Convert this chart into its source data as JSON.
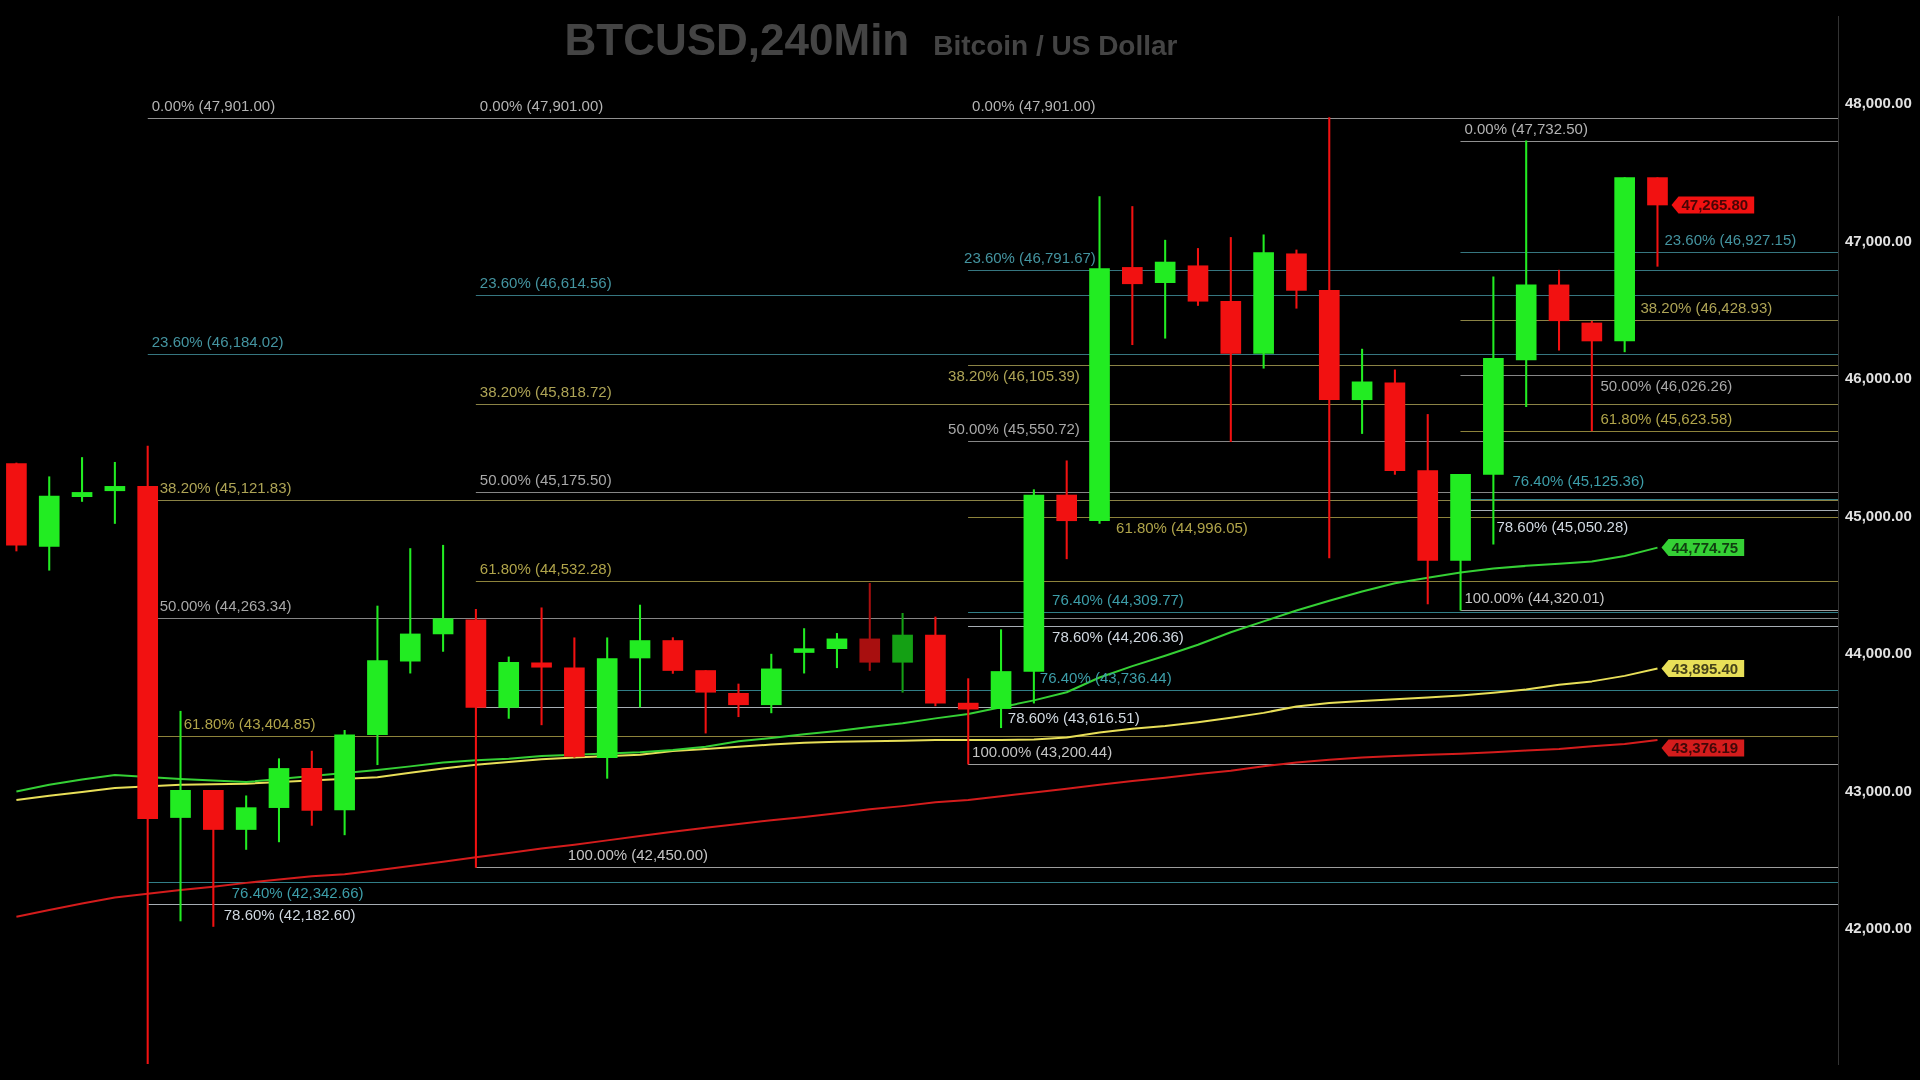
{
  "chart_data": {
    "type": "candlestick",
    "title": "BTCUSD,240Min",
    "subtitle": "Bitcoin / US Dollar",
    "categories": [
      null,
      null,
      null,
      null,
      null,
      null,
      null,
      null,
      null,
      null,
      null,
      null,
      null,
      null,
      null,
      null,
      null,
      null,
      null,
      null,
      null,
      null,
      null,
      null,
      null,
      null,
      null,
      null,
      null,
      null,
      null,
      null,
      null,
      null,
      null,
      null,
      null,
      null,
      null,
      null,
      null,
      null,
      null,
      null,
      null,
      null,
      null,
      null,
      null,
      null,
      null,
      null,
      null,
      null,
      null,
      null
    ],
    "ohlc": [
      [
        45386,
        45390,
        44750,
        44792
      ],
      [
        44784,
        45290,
        44610,
        45149
      ],
      [
        45145,
        45430,
        45110,
        45176
      ],
      [
        45188,
        45395,
        44950,
        45220
      ],
      [
        45220,
        45513,
        41020,
        42804
      ],
      [
        42812,
        43585,
        42060,
        43010
      ],
      [
        43010,
        43010,
        42020,
        42725
      ],
      [
        42725,
        42970,
        42580,
        42884
      ],
      [
        42884,
        43240,
        42635,
        43169
      ],
      [
        43169,
        43295,
        42755,
        42864
      ],
      [
        42868,
        43446,
        42686,
        43414
      ],
      [
        43414,
        44350,
        43196,
        43953
      ],
      [
        43949,
        44768,
        43862,
        44147
      ],
      [
        44147,
        44792,
        44020,
        44258
      ],
      [
        44250,
        44325,
        42450,
        43612
      ],
      [
        43612,
        43980,
        43533,
        43941
      ],
      [
        43937,
        44337,
        43486,
        43905
      ],
      [
        43901,
        44119,
        43250,
        43256
      ],
      [
        43248,
        44119,
        43097,
        43968
      ],
      [
        43972,
        44357,
        43615,
        44099
      ],
      [
        44099,
        44120,
        43860,
        43881
      ],
      [
        43881,
        43881,
        43426,
        43723
      ],
      [
        43715,
        43783,
        43545,
        43632
      ],
      [
        43632,
        44000,
        43573,
        43893
      ],
      [
        44012,
        44186,
        43862,
        44040
      ],
      [
        44040,
        44151,
        43901,
        44111
      ],
      [
        44111,
        44515,
        43881,
        43941
      ],
      [
        43941,
        44297,
        43723,
        44139
      ],
      [
        44139,
        44270,
        43624,
        43644
      ],
      [
        43644,
        43822,
        43200.44,
        43600
      ],
      [
        43604,
        44178,
        43465,
        43874
      ],
      [
        43874,
        45196,
        43644,
        45157
      ],
      [
        45157,
        45406,
        44693,
        44970
      ],
      [
        44970,
        47327,
        44950,
        46804
      ],
      [
        46812,
        47255,
        46250,
        46693
      ],
      [
        46701,
        47010,
        46297,
        46851
      ],
      [
        46824,
        46950,
        46535,
        46566
      ],
      [
        46566,
        47030,
        45545,
        46186
      ],
      [
        46186,
        47049,
        46079,
        46919
      ],
      [
        46911,
        46939,
        46515,
        46645
      ],
      [
        46645,
        47901,
        44700,
        45850
      ],
      [
        45850,
        46218,
        45604,
        45980
      ],
      [
        45972,
        46067,
        45307,
        45335
      ],
      [
        45335,
        45743,
        44365,
        44681
      ],
      [
        44681,
        45307,
        44320.01,
        45307
      ],
      [
        45307,
        46744,
        44800,
        46151
      ],
      [
        46139,
        47732.5,
        45800,
        46685
      ],
      [
        46685,
        46792,
        46210,
        46424
      ],
      [
        46408,
        46420,
        45624,
        46277
      ],
      [
        46277,
        47465,
        46198,
        47465
      ],
      [
        47465,
        47465,
        46820,
        47265.8
      ],
      null,
      null,
      null,
      null,
      null
    ],
    "colors": [
      "#f21111",
      "#22ec22",
      "#22ec22",
      "#22ec22",
      "#f21111",
      "#22ec22",
      "#f21111",
      "#22ec22",
      "#22ec22",
      "#f21111",
      "#22ec22",
      "#22ec22",
      "#22ec22",
      "#22ec22",
      "#f21111",
      "#22ec22",
      "#f21111",
      "#f21111",
      "#22ec22",
      "#22ec22",
      "#f21111",
      "#f21111",
      "#f21111",
      "#22ec22",
      "#22ec22",
      "#22ec22",
      "#a80f0f",
      "#14a014",
      "#f21111",
      "#f21111",
      "#22ec22",
      "#22ec22",
      "#f21111",
      "#22ec22",
      "#f21111",
      "#22ec22",
      "#f21111",
      "#f21111",
      "#22ec22",
      "#f21111",
      "#f21111",
      "#22ec22",
      "#f21111",
      "#f21111",
      "#22ec22",
      "#22ec22",
      "#22ec22",
      "#f21111",
      "#f21111",
      "#22ec22",
      "#f21111",
      null,
      null,
      null,
      null,
      null
    ],
    "value_labels": [
      null,
      null,
      null,
      null,
      null,
      null,
      null,
      null,
      null,
      null,
      null,
      null,
      null,
      null,
      null,
      null,
      null,
      null,
      null,
      null,
      null,
      null,
      null,
      null,
      null,
      null,
      null,
      null,
      null,
      null,
      null,
      null,
      null,
      null,
      null,
      null,
      null,
      null,
      null,
      null,
      null,
      null,
      null,
      null,
      null,
      null,
      null,
      null,
      null,
      null,
      "47,265.80",
      null,
      null,
      null,
      null,
      null
    ],
    "series": [
      {
        "type": "line",
        "color": "#35d035",
        "values": [
          43002,
          43050,
          43089,
          43121,
          null,
          43093,
          43081,
          43070,
          null,
          null,
          null,
          43157,
          43184,
          43212,
          43228,
          43240,
          43260,
          null,
          null,
          43287,
          43303,
          43327,
          43367,
          43390,
          43418,
          43442,
          43470,
          43497,
          43533,
          43565,
          null,
          43664,
          43723,
          43830,
          43913,
          43988,
          44068,
          44159,
          44238,
          44317,
          44388,
          44456,
          44515,
          44555,
          44594,
          44622,
          44642,
          44658,
          44673,
          44713,
          44774.75,
          null,
          null,
          null,
          null,
          null
        ],
        "value_labels": [
          null,
          null,
          null,
          null,
          null,
          null,
          null,
          null,
          null,
          null,
          null,
          null,
          null,
          null,
          null,
          null,
          null,
          null,
          null,
          null,
          null,
          null,
          null,
          null,
          null,
          null,
          null,
          null,
          null,
          null,
          null,
          null,
          null,
          null,
          null,
          null,
          null,
          null,
          null,
          null,
          null,
          null,
          null,
          null,
          null,
          null,
          null,
          null,
          null,
          null,
          "44,774.75",
          null,
          null,
          null,
          null,
          null
        ]
      },
      {
        "type": "line",
        "color": "#e8df58",
        "values": [
          42939,
          42971,
          42998,
          43026,
          null,
          43050,
          43054,
          43058,
          null,
          null,
          null,
          43105,
          43137,
          43169,
          43196,
          43216,
          43236,
          43248,
          null,
          43268,
          43295,
          43311,
          43327,
          43343,
          43355,
          43363,
          43367,
          43371,
          43375,
          43375,
          43375,
          43379,
          43394,
          43430,
          43458,
          43478,
          43505,
          43537,
          43573,
          43620,
          43644,
          43660,
          43672,
          43684,
          43699,
          43719,
          43743,
          43778,
          43802,
          43842,
          43895.4,
          null,
          null,
          null,
          null,
          null
        ],
        "value_labels": [
          null,
          null,
          null,
          null,
          null,
          null,
          null,
          null,
          null,
          null,
          null,
          null,
          null,
          null,
          null,
          null,
          null,
          null,
          null,
          null,
          null,
          null,
          null,
          null,
          null,
          null,
          null,
          null,
          null,
          null,
          null,
          null,
          null,
          null,
          null,
          null,
          null,
          null,
          null,
          null,
          null,
          null,
          null,
          null,
          null,
          null,
          null,
          null,
          null,
          null,
          "43,895.40",
          null,
          null,
          null,
          null,
          null
        ]
      },
      {
        "type": "line",
        "color": "#d41c1c",
        "values": [
          42091,
          42139,
          42187,
          42230,
          42258,
          42285,
          42309,
          42337,
          42361,
          42385,
          42400,
          42428,
          42460,
          42491,
          42523,
          42555,
          42587,
          42614,
          42646,
          42678,
          42709,
          42737,
          42765,
          42793,
          42816,
          42844,
          42872,
          42895,
          42923,
          42939,
          42967,
          42994,
          43022,
          43050,
          43078,
          43101,
          43129,
          43153,
          43185,
          43212,
          43232,
          43248,
          43260,
          43268,
          43276,
          43287,
          43299,
          43311,
          43331,
          43347,
          43376.19,
          null,
          null,
          null,
          null,
          null
        ],
        "value_labels": [
          null,
          null,
          null,
          null,
          null,
          null,
          null,
          null,
          null,
          null,
          null,
          null,
          null,
          null,
          null,
          null,
          null,
          null,
          null,
          null,
          null,
          null,
          null,
          null,
          null,
          null,
          null,
          null,
          null,
          null,
          null,
          null,
          null,
          null,
          null,
          null,
          null,
          null,
          null,
          null,
          null,
          null,
          null,
          null,
          null,
          null,
          null,
          null,
          null,
          null,
          "43,376.19",
          null,
          null,
          null,
          null,
          null
        ]
      }
    ],
    "ylim": [
      41020,
      48640
    ],
    "yticks": [
      {
        "value": 42000,
        "label": "42,000.00"
      },
      {
        "value": 43000,
        "label": "43,000.00"
      },
      {
        "value": 44000,
        "label": "44,000.00"
      },
      {
        "value": 45000,
        "label": "45,000.00"
      },
      {
        "value": 46000,
        "label": "46,000.00"
      },
      {
        "value": 47000,
        "label": "47,000.00"
      },
      {
        "value": 48000,
        "label": "48,000.00"
      }
    ],
    "tick_labels": "y",
    "annotations": [
      {
        "text": "0.00% (47,901.00)",
        "y": 47901
      },
      {
        "text": "0.00% (47,901.00)",
        "y": 47901
      }
    ],
    "ref_lines": [
      {
        "axis": "y",
        "value": 47901,
        "label": "0.00% (47,901.00)",
        "color": "#b4b4b4"
      },
      {
        "axis": "y",
        "value": 46184.02,
        "label": "23.60% (46,184.02)",
        "color": "#4494a0"
      },
      {
        "axis": "y",
        "value": 45121.83,
        "label": "38.20% (45,121.83)",
        "color": "#aea456"
      },
      {
        "axis": "y",
        "value": 44263.34,
        "label": "50.00% (44,263.34)",
        "color": "#a8a8a8"
      },
      {
        "axis": "y",
        "value": 43404.85,
        "label": "61.80% (43,404.85)",
        "color": "#b0a44a"
      },
      {
        "axis": "y",
        "value": 42342.66,
        "label": "76.40% (42,342.66)",
        "color": "#3d9ea9"
      },
      {
        "axis": "y",
        "value": 42182.6,
        "label": "78.60% (42,182.60)",
        "color": "#d0d8e0"
      },
      {
        "axis": "y",
        "value": 46614.56,
        "label": "23.60% (46,614.56)",
        "color": "#4494a0"
      },
      {
        "axis": "y",
        "value": 45818.72,
        "label": "38.20% (45,818.72)",
        "color": "#aea456"
      },
      {
        "axis": "y",
        "value": 45175.5,
        "label": "50.00% (45,175.50)",
        "color": "#a8a8a8"
      },
      {
        "axis": "y",
        "value": 44532.28,
        "label": "61.80% (44,532.28)",
        "color": "#b0a44a"
      },
      {
        "axis": "y",
        "value": 43736.44,
        "label": "76.40% (43,736.44)",
        "color": "#3d9ea9"
      },
      {
        "axis": "y",
        "value": 43616.51,
        "label": "78.60% (43,616.51)",
        "color": "#d0d8e0"
      },
      {
        "axis": "y",
        "value": 42450,
        "label": "100.00% (42,450.00)",
        "color": "#c4c4c4"
      },
      {
        "axis": "y",
        "value": 46791.67,
        "label": "23.60% (46,791.67)",
        "color": "#4494a0"
      },
      {
        "axis": "y",
        "value": 46105.39,
        "label": "38.20% (46,105.39)",
        "color": "#aea456"
      },
      {
        "axis": "y",
        "value": 45550.72,
        "label": "50.00% (45,550.72)",
        "color": "#a8a8a8"
      },
      {
        "axis": "y",
        "value": 44996.05,
        "label": "61.80% (44,996.05)",
        "color": "#b0a44a"
      },
      {
        "axis": "y",
        "value": 44309.77,
        "label": "76.40% (44,309.77)",
        "color": "#3d9ea9"
      },
      {
        "axis": "y",
        "value": 44206.36,
        "label": "78.60% (44,206.36)",
        "color": "#d0d8e0"
      },
      {
        "axis": "y",
        "value": 43200.44,
        "label": "100.00% (43,200.44)",
        "color": "#c4c4c4"
      },
      {
        "axis": "y",
        "value": 47732.5,
        "label": "0.00% (47,732.50)",
        "color": "#b4b4b4"
      },
      {
        "axis": "y",
        "value": 46927.15,
        "label": "23.60% (46,927.15)",
        "color": "#4494a0"
      },
      {
        "axis": "y",
        "value": 46428.93,
        "label": "38.20% (46,428.93)",
        "color": "#aea456"
      },
      {
        "axis": "y",
        "value": 46026.26,
        "label": "50.00% (46,026.26)",
        "color": "#a8a8a8"
      },
      {
        "axis": "y",
        "value": 45623.58,
        "label": "61.80% (45,623.58)",
        "color": "#b0a44a"
      },
      {
        "axis": "y",
        "value": 45125.36,
        "label": "76.40% (45,125.36)",
        "color": "#3d9ea9"
      },
      {
        "axis": "y",
        "value": 45050.28,
        "label": "78.60% (45,050.28)",
        "color": "#d0d8e0"
      },
      {
        "axis": "y",
        "value": 44320.01,
        "label": "100.00% (44,320.01)",
        "color": "#c4c4c4"
      }
    ]
  }
}
